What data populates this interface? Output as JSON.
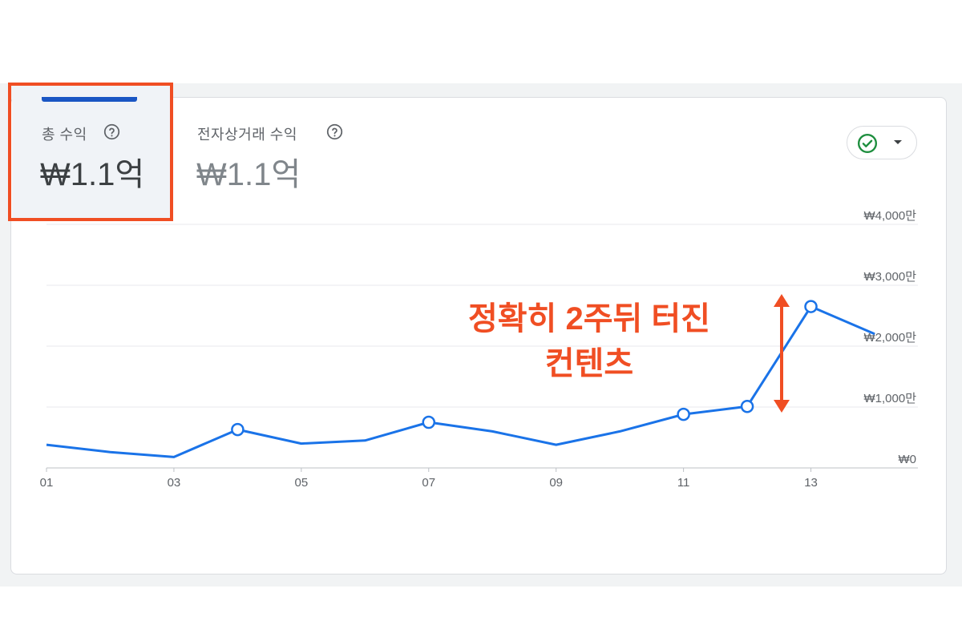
{
  "tabs": [
    {
      "label": "총 수익",
      "value": "₩1.1억",
      "selected": true
    },
    {
      "label": "전자상거래 수익",
      "value": "₩1.1억",
      "selected": false
    }
  ],
  "status_dropdown": {
    "icon": "check-circle-icon",
    "caret": "dropdown-caret-icon",
    "icon_color": "#1e8e3e"
  },
  "annotation": {
    "lines": [
      "정확히 2주뒤 터진",
      "컨텐츠"
    ],
    "color": "#f04e23"
  },
  "chart_data": {
    "type": "line",
    "x": [
      "01",
      "02",
      "03",
      "04",
      "05",
      "06",
      "07",
      "08",
      "09",
      "10",
      "11",
      "12",
      "13",
      "14"
    ],
    "x_tick_labels": [
      "01",
      "03",
      "05",
      "07",
      "09",
      "11",
      "13"
    ],
    "y_tick_labels": [
      "₩0",
      "₩1,000만",
      "₩2,000만",
      "₩3,000만",
      "₩4,000만"
    ],
    "ylim": [
      0,
      4000
    ],
    "y_unit": "만 원",
    "series": [
      {
        "values": [
          380,
          260,
          180,
          630,
          400,
          450,
          750,
          600,
          380,
          600,
          880,
          1010,
          2650,
          2200
        ]
      }
    ],
    "markers_at": [
      "04",
      "07",
      "11",
      "12",
      "13"
    ],
    "line_color": "#1a73e8",
    "grid": true,
    "y_axis_position": "right"
  }
}
